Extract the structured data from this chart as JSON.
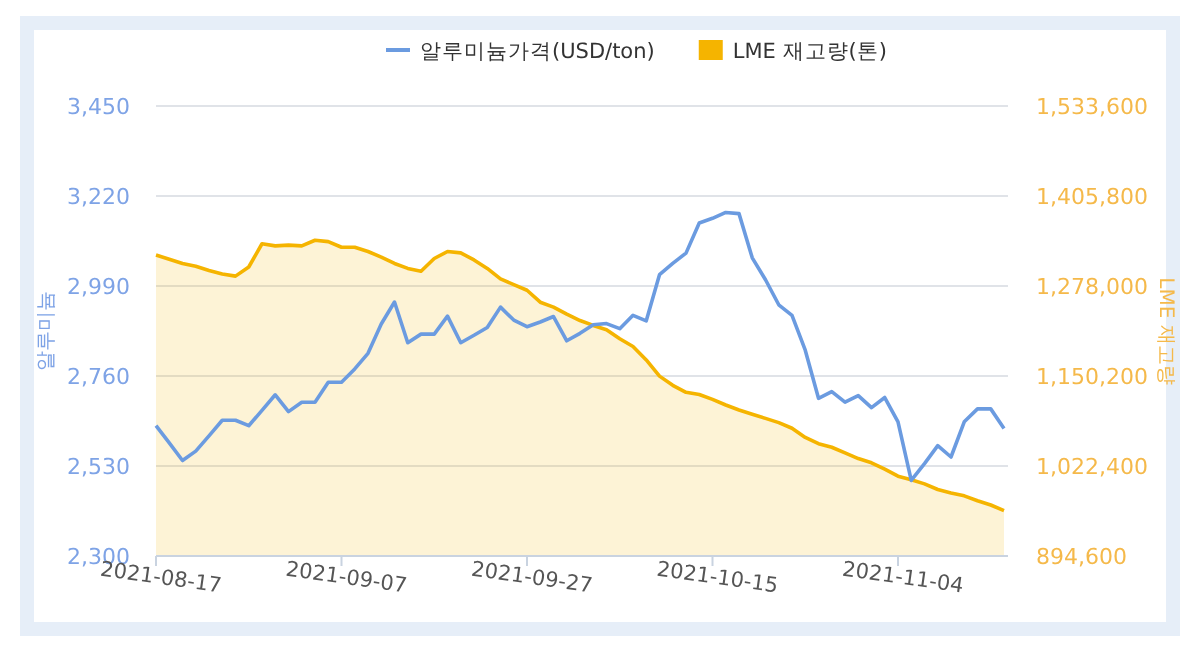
{
  "chart_data": {
    "type": "line",
    "ylabel": "알루미늄",
    "y2label": "LME 재고량",
    "categories": [
      "2021-08-17",
      null,
      null,
      null,
      null,
      null,
      null,
      null,
      null,
      null,
      null,
      null,
      null,
      null,
      "2021-09-07",
      null,
      null,
      null,
      null,
      null,
      null,
      null,
      null,
      null,
      null,
      null,
      null,
      null,
      "2021-09-27",
      null,
      null,
      null,
      null,
      null,
      null,
      null,
      null,
      null,
      null,
      null,
      null,
      null,
      "2021-10-15",
      null,
      null,
      null,
      null,
      null,
      null,
      null,
      null,
      null,
      null,
      null,
      null,
      null,
      "2021-11-04",
      null,
      null,
      null,
      null,
      null,
      null,
      null,
      null
    ],
    "series": [
      {
        "name": "알루미늄가격(USD/ton)",
        "color": "#6b9be0",
        "values": [
          2633,
          2589,
          2544,
          2568,
          2607,
          2647,
          2647,
          2633,
          2672,
          2712,
          2669,
          2693,
          2693,
          2744,
          2744,
          2778,
          2818,
          2893,
          2949,
          2845,
          2867,
          2867,
          2913,
          2845,
          2864,
          2884,
          2936,
          2903,
          2886,
          2898,
          2912,
          2850,
          2869,
          2891,
          2894,
          2881,
          2915,
          2901,
          3019,
          3048,
          3074,
          3151,
          3163,
          3178,
          3175,
          3062,
          3006,
          2942,
          2915,
          2826,
          2703,
          2720,
          2693,
          2710,
          2679,
          2705,
          2643,
          2493,
          2536,
          2582,
          2553,
          2643,
          2676,
          2676,
          2626
        ]
      },
      {
        "name": "LME 재고량(톤)",
        "color": "#f5b400",
        "type": "area",
        "axis": "y2",
        "values": [
          1322000,
          1316000,
          1310000,
          1306000,
          1300000,
          1295000,
          1292000,
          1305000,
          1338000,
          1335000,
          1336000,
          1335000,
          1343000,
          1341000,
          1333000,
          1333000,
          1327000,
          1319000,
          1310000,
          1303000,
          1299000,
          1317000,
          1327000,
          1325000,
          1315000,
          1303000,
          1288000,
          1280000,
          1272000,
          1255000,
          1248000,
          1238000,
          1229000,
          1222000,
          1216000,
          1203000,
          1192000,
          1173000,
          1150000,
          1137000,
          1127000,
          1124000,
          1117000,
          1109000,
          1102000,
          1096000,
          1090000,
          1084000,
          1076000,
          1063000,
          1054000,
          1049000,
          1041000,
          1033000,
          1027000,
          1018000,
          1008000,
          1003000,
          997000,
          989000,
          984000,
          980000,
          973000,
          967000,
          959000
        ]
      }
    ],
    "ylim": [
      2300,
      3450
    ],
    "yticks": [
      {
        "value": 2300,
        "label": "2,300"
      },
      {
        "value": 2530,
        "label": "2,530"
      },
      {
        "value": 2760,
        "label": "2,760"
      },
      {
        "value": 2990,
        "label": "2,990"
      },
      {
        "value": 3220,
        "label": "3,220"
      },
      {
        "value": 3450,
        "label": "3,450"
      }
    ],
    "y2lim": [
      894600,
      1533600
    ],
    "y2ticks": [
      {
        "value": 894600,
        "label": "894,600"
      },
      {
        "value": 1022400,
        "label": "1,022,400"
      },
      {
        "value": 1150200,
        "label": "1,150,200"
      },
      {
        "value": 1278000,
        "label": "1,278,000"
      },
      {
        "value": 1405800,
        "label": "1,405,800"
      },
      {
        "value": 1533600,
        "label": "1,533,600"
      }
    ],
    "grid": "y",
    "legend": "top"
  }
}
